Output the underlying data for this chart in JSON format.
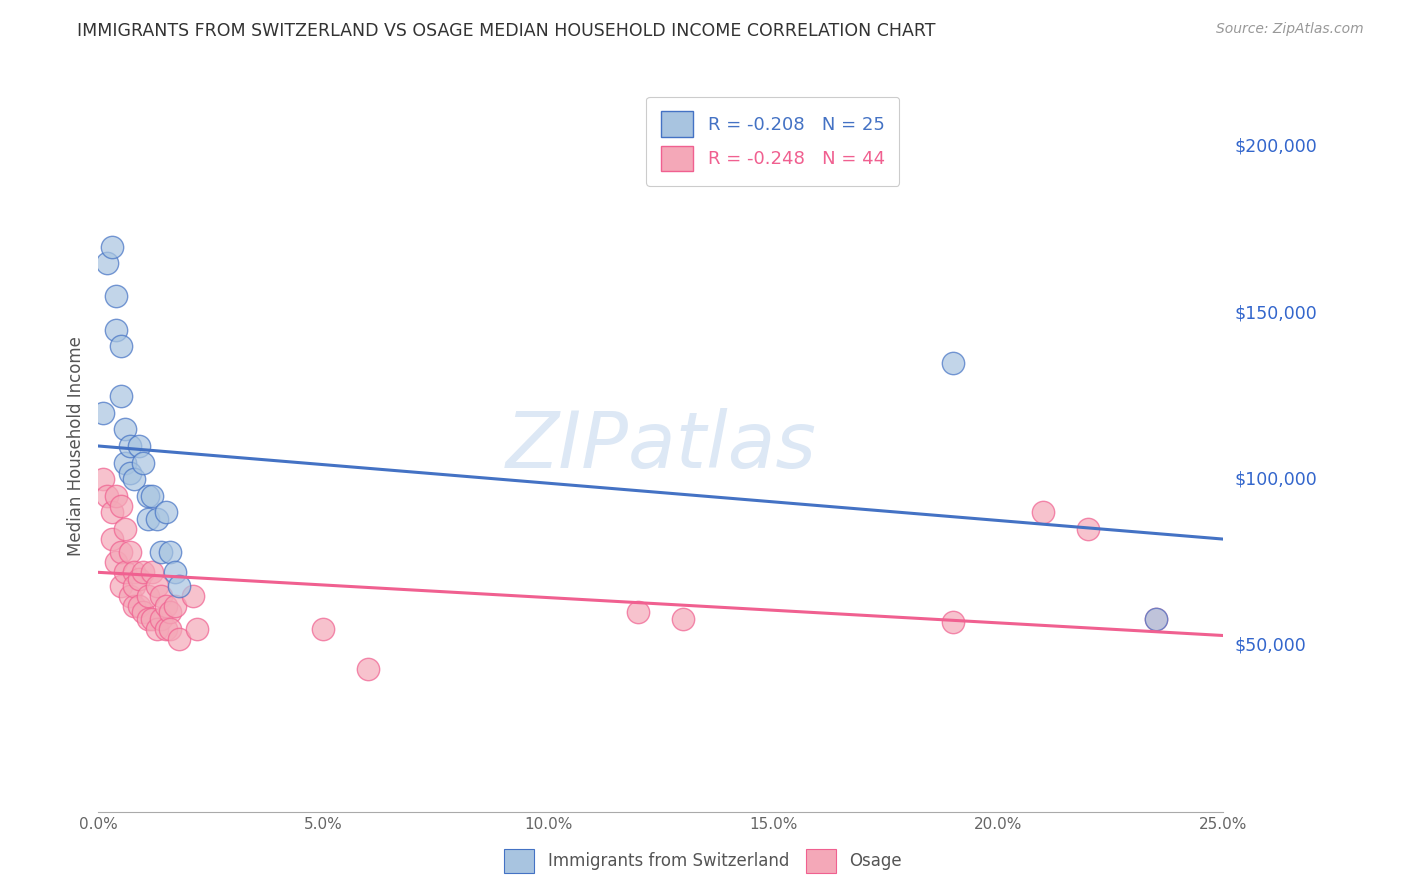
{
  "title": "IMMIGRANTS FROM SWITZERLAND VS OSAGE MEDIAN HOUSEHOLD INCOME CORRELATION CHART",
  "source": "Source: ZipAtlas.com",
  "ylabel": "Median Household Income",
  "xmin": 0.0,
  "xmax": 0.25,
  "ymin": 0,
  "ymax": 220000,
  "yticks": [
    50000,
    100000,
    150000,
    200000
  ],
  "ytick_labels": [
    "$50,000",
    "$100,000",
    "$150,000",
    "$200,000"
  ],
  "blue_label": "Immigrants from Switzerland",
  "pink_label": "Osage",
  "blue_R": -0.208,
  "blue_N": 25,
  "pink_R": -0.248,
  "pink_N": 44,
  "blue_color": "#a8c4e0",
  "pink_color": "#f4a8b8",
  "trend_blue_color": "#4472c4",
  "trend_pink_color": "#f06090",
  "watermark": "ZIPatlas",
  "blue_x": [
    0.001,
    0.002,
    0.003,
    0.004,
    0.004,
    0.005,
    0.005,
    0.006,
    0.006,
    0.007,
    0.007,
    0.008,
    0.009,
    0.01,
    0.011,
    0.011,
    0.012,
    0.013,
    0.014,
    0.015,
    0.016,
    0.017,
    0.018,
    0.19,
    0.235
  ],
  "blue_y": [
    120000,
    165000,
    170000,
    155000,
    145000,
    140000,
    125000,
    115000,
    105000,
    110000,
    102000,
    100000,
    110000,
    105000,
    95000,
    88000,
    95000,
    88000,
    78000,
    90000,
    78000,
    72000,
    68000,
    135000,
    58000
  ],
  "pink_x": [
    0.001,
    0.002,
    0.003,
    0.003,
    0.004,
    0.004,
    0.005,
    0.005,
    0.005,
    0.006,
    0.006,
    0.007,
    0.007,
    0.008,
    0.008,
    0.008,
    0.009,
    0.009,
    0.01,
    0.01,
    0.011,
    0.011,
    0.012,
    0.012,
    0.013,
    0.013,
    0.014,
    0.014,
    0.015,
    0.015,
    0.016,
    0.016,
    0.017,
    0.018,
    0.021,
    0.022,
    0.05,
    0.06,
    0.12,
    0.13,
    0.19,
    0.21,
    0.22,
    0.235
  ],
  "pink_y": [
    100000,
    95000,
    90000,
    82000,
    95000,
    75000,
    92000,
    78000,
    68000,
    85000,
    72000,
    78000,
    65000,
    72000,
    62000,
    68000,
    62000,
    70000,
    60000,
    72000,
    65000,
    58000,
    72000,
    58000,
    68000,
    55000,
    65000,
    58000,
    62000,
    55000,
    60000,
    55000,
    62000,
    52000,
    65000,
    55000,
    55000,
    43000,
    60000,
    58000,
    57000,
    90000,
    85000,
    58000
  ],
  "background_color": "#ffffff",
  "grid_color": "#cccccc",
  "title_color": "#333333",
  "axis_tick_color": "#3366cc",
  "watermark_color": "#dde8f5",
  "legend_blue_text": "R = -0.208   N = 25",
  "legend_pink_text": "R = -0.248   N = 44",
  "blue_trend_y0": 110000,
  "blue_trend_y1": 82000,
  "pink_trend_y0": 72000,
  "pink_trend_y1": 53000
}
